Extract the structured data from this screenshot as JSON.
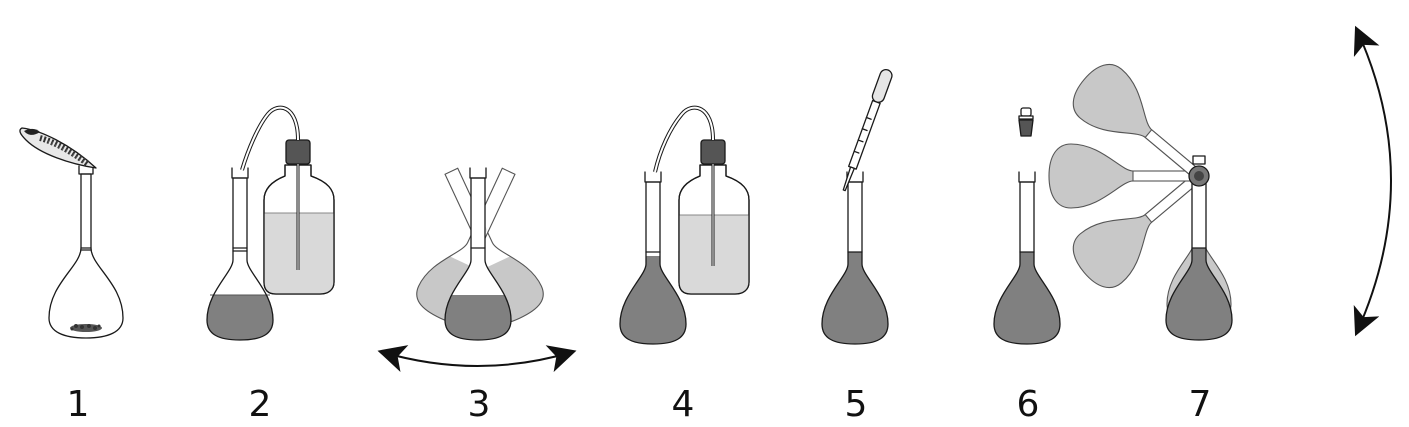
{
  "steps": [
    {
      "label": "1"
    },
    {
      "label": "2"
    },
    {
      "label": "3"
    },
    {
      "label": "4"
    },
    {
      "label": "5"
    },
    {
      "label": "6"
    },
    {
      "label": "7"
    }
  ],
  "colors": {
    "solution": "#808080",
    "solvent": "#d9d9d9",
    "ghost": "#c8c8c8",
    "stopper": "#555555",
    "outline": "#1a1a1a"
  },
  "icons": [
    "weighing-boat-icon",
    "wash-bottle-icon",
    "pipette-icon",
    "stopper-icon",
    "double-arrow-icon"
  ]
}
